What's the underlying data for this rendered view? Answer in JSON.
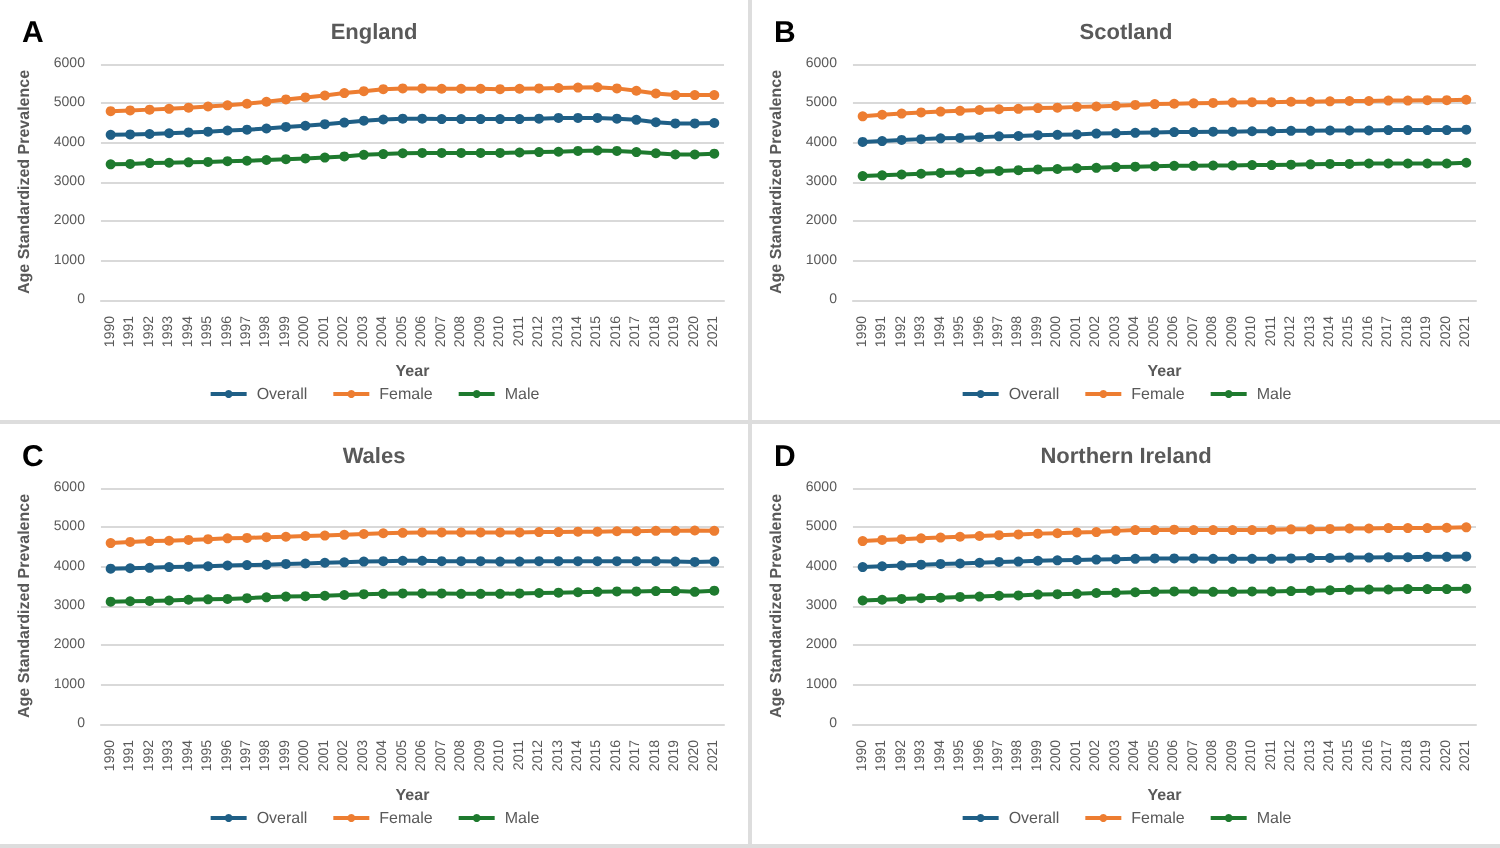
{
  "chart_data": [
    {
      "type": "line",
      "title": "England",
      "annotations": [
        "A"
      ],
      "xlabel": "Year",
      "ylabel": "Age Standardized Prevalence",
      "categories": [
        "1990",
        "1991",
        "1992",
        "1993",
        "1994",
        "1995",
        "1996",
        "1997",
        "1998",
        "1999",
        "2000",
        "2001",
        "2002",
        "2003",
        "2004",
        "2005",
        "2006",
        "2007",
        "2008",
        "2009",
        "2010",
        "2011",
        "2012",
        "2013",
        "2014",
        "2015",
        "2016",
        "2017",
        "2018",
        "2019",
        "2020",
        "2021"
      ],
      "ylim": [
        0,
        6000
      ],
      "yticks": [
        0,
        1000,
        2000,
        3000,
        4000,
        5000,
        6000
      ],
      "grid": "y",
      "legend": "bottom",
      "marker": "circle",
      "series": [
        {
          "name": "Overall",
          "color": "#1f5f86",
          "values": [
            4200,
            4210,
            4220,
            4240,
            4260,
            4280,
            4310,
            4330,
            4360,
            4400,
            4430,
            4470,
            4510,
            4560,
            4590,
            4610,
            4610,
            4600,
            4600,
            4600,
            4600,
            4600,
            4610,
            4630,
            4630,
            4630,
            4610,
            4580,
            4520,
            4490,
            4490,
            4500
          ]
        },
        {
          "name": "Female",
          "color": "#ed7d31",
          "values": [
            4800,
            4820,
            4840,
            4860,
            4890,
            4920,
            4950,
            4990,
            5040,
            5100,
            5150,
            5200,
            5260,
            5310,
            5360,
            5380,
            5380,
            5370,
            5370,
            5370,
            5360,
            5370,
            5380,
            5390,
            5400,
            5410,
            5380,
            5320,
            5250,
            5210,
            5210,
            5210
          ]
        },
        {
          "name": "Male",
          "color": "#1e7a2e",
          "values": [
            3450,
            3460,
            3480,
            3490,
            3500,
            3510,
            3530,
            3540,
            3560,
            3580,
            3600,
            3620,
            3650,
            3690,
            3710,
            3730,
            3740,
            3740,
            3740,
            3740,
            3740,
            3750,
            3760,
            3770,
            3790,
            3800,
            3790,
            3760,
            3730,
            3700,
            3700,
            3720
          ]
        }
      ]
    },
    {
      "type": "line",
      "title": "Scotland",
      "annotations": [
        "B"
      ],
      "xlabel": "Year",
      "ylabel": "Age Standardized Prevalence",
      "categories": [
        "1990",
        "1991",
        "1992",
        "1993",
        "1994",
        "1995",
        "1996",
        "1997",
        "1998",
        "1999",
        "2000",
        "2001",
        "2002",
        "2003",
        "2004",
        "2005",
        "2006",
        "2007",
        "2008",
        "2009",
        "2010",
        "2011",
        "2012",
        "2013",
        "2014",
        "2015",
        "2016",
        "2017",
        "2018",
        "2019",
        "2020",
        "2021"
      ],
      "ylim": [
        0,
        6000
      ],
      "yticks": [
        0,
        1000,
        2000,
        3000,
        4000,
        5000,
        6000
      ],
      "grid": "y",
      "legend": "bottom",
      "marker": "circle",
      "series": [
        {
          "name": "Overall",
          "color": "#1f5f86",
          "values": [
            4020,
            4040,
            4070,
            4090,
            4110,
            4120,
            4140,
            4160,
            4170,
            4190,
            4200,
            4210,
            4230,
            4240,
            4250,
            4260,
            4270,
            4270,
            4280,
            4280,
            4290,
            4290,
            4300,
            4300,
            4310,
            4310,
            4310,
            4320,
            4320,
            4320,
            4320,
            4330
          ]
        },
        {
          "name": "Female",
          "color": "#ed7d31",
          "values": [
            4670,
            4710,
            4740,
            4770,
            4790,
            4810,
            4830,
            4850,
            4860,
            4880,
            4890,
            4910,
            4920,
            4940,
            4960,
            4980,
            4990,
            5000,
            5010,
            5020,
            5030,
            5030,
            5040,
            5040,
            5050,
            5060,
            5060,
            5070,
            5070,
            5080,
            5080,
            5090
          ]
        },
        {
          "name": "Male",
          "color": "#1e7a2e",
          "values": [
            3150,
            3170,
            3190,
            3210,
            3230,
            3240,
            3260,
            3280,
            3300,
            3320,
            3330,
            3350,
            3360,
            3380,
            3390,
            3400,
            3410,
            3410,
            3420,
            3420,
            3430,
            3430,
            3440,
            3450,
            3460,
            3460,
            3470,
            3470,
            3470,
            3470,
            3470,
            3490
          ]
        }
      ]
    },
    {
      "type": "line",
      "title": "Wales",
      "annotations": [
        "C"
      ],
      "xlabel": "Year",
      "ylabel": "Age Standardized Prevalence",
      "categories": [
        "1990",
        "1991",
        "1992",
        "1993",
        "1994",
        "1995",
        "1996",
        "1997",
        "1998",
        "1999",
        "2000",
        "2001",
        "2002",
        "2003",
        "2004",
        "2005",
        "2006",
        "2007",
        "2008",
        "2009",
        "2010",
        "2011",
        "2012",
        "2013",
        "2014",
        "2015",
        "2016",
        "2017",
        "2018",
        "2019",
        "2020",
        "2021"
      ],
      "ylim": [
        0,
        6000
      ],
      "yticks": [
        0,
        1000,
        2000,
        3000,
        4000,
        5000,
        6000
      ],
      "grid": "y",
      "legend": "bottom",
      "marker": "circle",
      "series": [
        {
          "name": "Overall",
          "color": "#1f5f86",
          "values": [
            3950,
            3960,
            3970,
            3990,
            4000,
            4010,
            4030,
            4040,
            4050,
            4070,
            4080,
            4100,
            4110,
            4130,
            4140,
            4150,
            4150,
            4140,
            4140,
            4140,
            4130,
            4130,
            4140,
            4140,
            4140,
            4140,
            4140,
            4140,
            4140,
            4130,
            4120,
            4130
          ]
        },
        {
          "name": "Female",
          "color": "#ed7d31",
          "values": [
            4600,
            4630,
            4650,
            4660,
            4680,
            4700,
            4720,
            4730,
            4750,
            4760,
            4780,
            4790,
            4810,
            4830,
            4850,
            4860,
            4870,
            4870,
            4870,
            4870,
            4870,
            4870,
            4880,
            4880,
            4890,
            4890,
            4900,
            4900,
            4910,
            4910,
            4920,
            4910
          ]
        },
        {
          "name": "Male",
          "color": "#1e7a2e",
          "values": [
            3110,
            3120,
            3130,
            3140,
            3160,
            3170,
            3180,
            3200,
            3220,
            3240,
            3250,
            3260,
            3280,
            3300,
            3310,
            3320,
            3320,
            3320,
            3310,
            3310,
            3310,
            3320,
            3330,
            3340,
            3350,
            3360,
            3370,
            3370,
            3380,
            3380,
            3360,
            3390
          ]
        }
      ]
    },
    {
      "type": "line",
      "title": "Northern Ireland",
      "annotations": [
        "D"
      ],
      "xlabel": "Year",
      "ylabel": "Age Standardized Prevalence",
      "categories": [
        "1990",
        "1991",
        "1992",
        "1993",
        "1994",
        "1995",
        "1996",
        "1997",
        "1998",
        "1999",
        "2000",
        "2001",
        "2002",
        "2003",
        "2004",
        "2005",
        "2006",
        "2007",
        "2008",
        "2009",
        "2010",
        "2011",
        "2012",
        "2013",
        "2014",
        "2015",
        "2016",
        "2017",
        "2018",
        "2019",
        "2020",
        "2021"
      ],
      "ylim": [
        0,
        6000
      ],
      "yticks": [
        0,
        1000,
        2000,
        3000,
        4000,
        5000,
        6000
      ],
      "grid": "y",
      "legend": "bottom",
      "marker": "circle",
      "series": [
        {
          "name": "Overall",
          "color": "#1f5f86",
          "values": [
            3990,
            4010,
            4030,
            4050,
            4070,
            4080,
            4100,
            4120,
            4130,
            4150,
            4160,
            4170,
            4180,
            4190,
            4200,
            4210,
            4210,
            4210,
            4200,
            4200,
            4200,
            4200,
            4210,
            4220,
            4220,
            4230,
            4230,
            4240,
            4240,
            4250,
            4250,
            4260
          ]
        },
        {
          "name": "Female",
          "color": "#ed7d31",
          "values": [
            4650,
            4680,
            4700,
            4720,
            4740,
            4760,
            4780,
            4800,
            4820,
            4840,
            4850,
            4870,
            4880,
            4910,
            4930,
            4930,
            4940,
            4930,
            4930,
            4930,
            4930,
            4940,
            4950,
            4950,
            4960,
            4970,
            4970,
            4980,
            4980,
            4980,
            4990,
            5000
          ]
        },
        {
          "name": "Male",
          "color": "#1e7a2e",
          "values": [
            3140,
            3160,
            3180,
            3200,
            3210,
            3230,
            3240,
            3260,
            3270,
            3290,
            3300,
            3310,
            3330,
            3340,
            3350,
            3360,
            3370,
            3370,
            3360,
            3360,
            3370,
            3370,
            3380,
            3390,
            3400,
            3410,
            3420,
            3420,
            3430,
            3430,
            3430,
            3440
          ]
        }
      ]
    }
  ]
}
